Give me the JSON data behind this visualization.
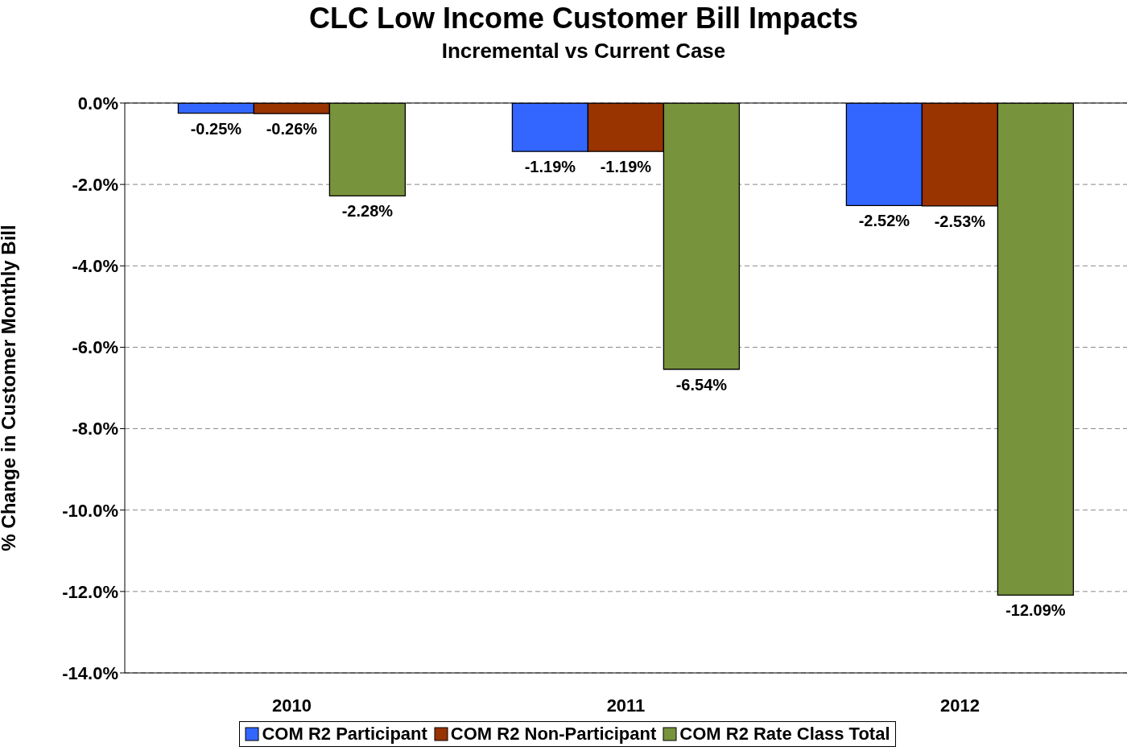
{
  "chart_data": {
    "type": "bar",
    "title": "CLC Low Income Customer Bill Impacts",
    "subtitle": "Incremental vs Current Case",
    "ylabel": "% Change in Customer Monthly Bill",
    "categories": [
      "2010",
      "2011",
      "2012"
    ],
    "series": [
      {
        "name": "COM R2 Participant",
        "color": "#3366ff",
        "values": [
          -0.25,
          -1.19,
          -2.52
        ],
        "value_labels": [
          "-0.25%",
          "-1.19%",
          "-2.52%"
        ]
      },
      {
        "name": "COM R2 Non-Participant",
        "color": "#993300",
        "values": [
          -0.26,
          -1.19,
          -2.53
        ],
        "value_labels": [
          "-0.26%",
          "-1.19%",
          "-2.53%"
        ]
      },
      {
        "name": "COM R2 Rate Class Total",
        "color": "#77933c",
        "values": [
          -2.28,
          -6.54,
          -12.09
        ],
        "value_labels": [
          "-2.28%",
          "-6.54%",
          "-12.09%"
        ]
      }
    ],
    "ylim": [
      -14,
      0
    ],
    "yticks": [
      {
        "value": -14,
        "label": "-14.0%"
      },
      {
        "value": -12,
        "label": "-12.0%"
      },
      {
        "value": -10,
        "label": "-10.0%"
      },
      {
        "value": -8,
        "label": "-8.0%"
      },
      {
        "value": -6,
        "label": "-6.0%"
      },
      {
        "value": -4,
        "label": "-4.0%"
      },
      {
        "value": -2,
        "label": "-2.0%"
      },
      {
        "value": 0,
        "label": "0.0%"
      }
    ],
    "grid": "y",
    "legend": "bottom"
  }
}
